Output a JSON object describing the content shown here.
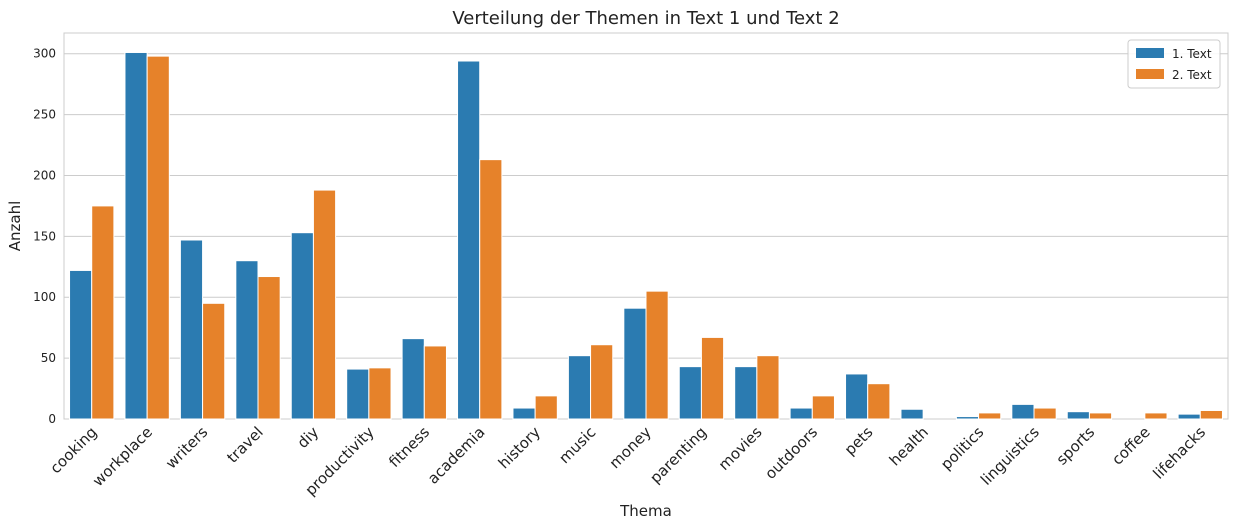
{
  "chart_data": {
    "type": "bar",
    "title": "Verteilung der Themen in Text 1 und Text 2",
    "xlabel": "Thema",
    "ylabel": "Anzahl",
    "ylim": [
      0,
      317
    ],
    "yticks": [
      0,
      50,
      100,
      150,
      200,
      250,
      300
    ],
    "grid": "horizontal",
    "legend_position": "top-right",
    "categories": [
      "cooking",
      "workplace",
      "writers",
      "travel",
      "diy",
      "productivity",
      "fitness",
      "academia",
      "history",
      "music",
      "money",
      "parenting",
      "movies",
      "outdoors",
      "pets",
      "health",
      "politics",
      "linguistics",
      "sports",
      "coffee",
      "lifehacks"
    ],
    "series": [
      {
        "name": "1. Text",
        "color": "#2b7bb1",
        "values": [
          122,
          301,
          147,
          130,
          153,
          41,
          66,
          294,
          9,
          52,
          91,
          43,
          43,
          9,
          37,
          8,
          2,
          12,
          6,
          0,
          4
        ]
      },
      {
        "name": "2. Text",
        "color": "#e6822a",
        "values": [
          175,
          298,
          95,
          117,
          188,
          42,
          60,
          213,
          19,
          61,
          105,
          67,
          52,
          19,
          29,
          0,
          5,
          9,
          5,
          5,
          7
        ]
      }
    ]
  }
}
